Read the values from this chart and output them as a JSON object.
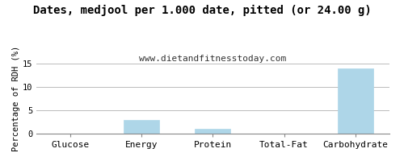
{
  "title": "Dates, medjool per 1.000 date, pitted (or 24.00 g)",
  "subtitle": "www.dietandfitnesstoday.com",
  "categories": [
    "Glucose",
    "Energy",
    "Protein",
    "Total-Fat",
    "Carbohydrate"
  ],
  "values": [
    0,
    3.0,
    1.0,
    0,
    14.0
  ],
  "bar_color": "#aed6e8",
  "bar_edge_color": "#aed6e8",
  "ylabel": "Percentage of RDH (%)",
  "ylim": [
    0,
    15
  ],
  "yticks": [
    0,
    5,
    10,
    15
  ],
  "grid_color": "#bbbbbb",
  "background_color": "#ffffff",
  "title_fontsize": 10,
  "subtitle_fontsize": 8,
  "ylabel_fontsize": 7.5,
  "xlabel_fontsize": 8,
  "tick_fontsize": 7.5
}
